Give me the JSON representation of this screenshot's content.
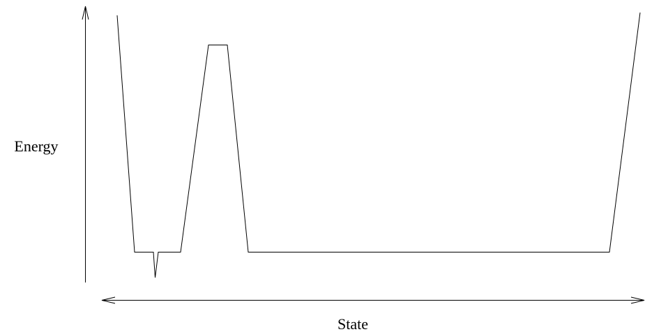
{
  "axes": {
    "y_label": "Energy",
    "x_label": "State"
  }
}
